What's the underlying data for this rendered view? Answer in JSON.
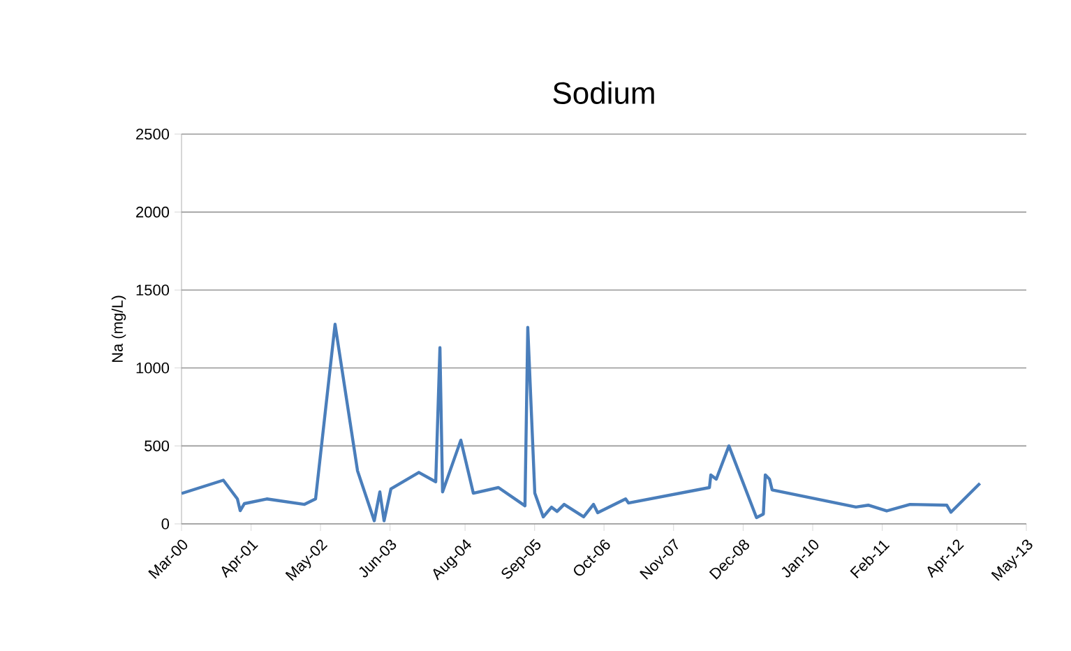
{
  "chart_data": {
    "type": "line",
    "title": "Sodium",
    "ylabel": "Na (mg/L)",
    "x": [
      "2000-03-01",
      "2000-10-25",
      "2001-01-13",
      "2001-01-29",
      "2001-02-22",
      "2001-06-29",
      "2002-01-30",
      "2002-04-03",
      "2002-07-23",
      "2002-11-28",
      "2003-03-03",
      "2003-04-04",
      "2003-04-28",
      "2003-06-06",
      "2003-11-12",
      "2004-02-16",
      "2004-03-11",
      "2004-03-26",
      "2004-07-08",
      "2004-09-17",
      "2005-02-07",
      "2005-07-08",
      "2005-07-24",
      "2005-09-02",
      "2005-10-20",
      "2005-12-06",
      "2006-01-07",
      "2006-02-16",
      "2006-06-07",
      "2006-08-02",
      "2006-08-26",
      "2007-02-01",
      "2007-02-17",
      "2008-05-23",
      "2008-05-31",
      "2008-07-01",
      "2008-09-11",
      "2009-02-15",
      "2009-03-26",
      "2009-04-06",
      "2009-04-30",
      "2009-05-15",
      "2010-09-04",
      "2010-11-13",
      "2011-02-26",
      "2011-07-09",
      "2012-02-03",
      "2012-02-27",
      "2012-08-10"
    ],
    "series": [
      {
        "color": "#4a7ebb",
        "values": [
          195,
          280,
          160,
          85,
          130,
          160,
          125,
          160,
          1280,
          340,
          20,
          205,
          20,
          225,
          330,
          270,
          1130,
          205,
          537,
          197,
          233,
          116,
          1260,
          197,
          45,
          107,
          80,
          125,
          45,
          125,
          72,
          160,
          134,
          233,
          314,
          287,
          500,
          40,
          63,
          314,
          287,
          218,
          108,
          120,
          83,
          125,
          120,
          75,
          260
        ]
      }
    ],
    "xlim": [
      "2000-03-01",
      "2013-05-01"
    ],
    "xticks": [
      {
        "value": "2000-03-01",
        "label": "Mar-00"
      },
      {
        "value": "2001-04-01",
        "label": "Apr-01"
      },
      {
        "value": "2002-05-01",
        "label": "May-02"
      },
      {
        "value": "2003-06-01",
        "label": "Jun-03"
      },
      {
        "value": "2004-08-01",
        "label": "Aug-04"
      },
      {
        "value": "2005-09-01",
        "label": "Sep-05"
      },
      {
        "value": "2006-10-01",
        "label": "Oct-06"
      },
      {
        "value": "2007-11-01",
        "label": "Nov-07"
      },
      {
        "value": "2008-12-01",
        "label": "Dec-08"
      },
      {
        "value": "2010-01-01",
        "label": "Jan-10"
      },
      {
        "value": "2011-02-01",
        "label": "Feb-11"
      },
      {
        "value": "2012-04-01",
        "label": "Apr-12"
      },
      {
        "value": "2013-05-01",
        "label": "May-13"
      }
    ],
    "ylim": [
      0,
      2500
    ],
    "yticks": [
      0,
      500,
      1000,
      1500,
      2000,
      2500
    ],
    "grid": "y",
    "marker": "none",
    "line_style": "solid"
  }
}
